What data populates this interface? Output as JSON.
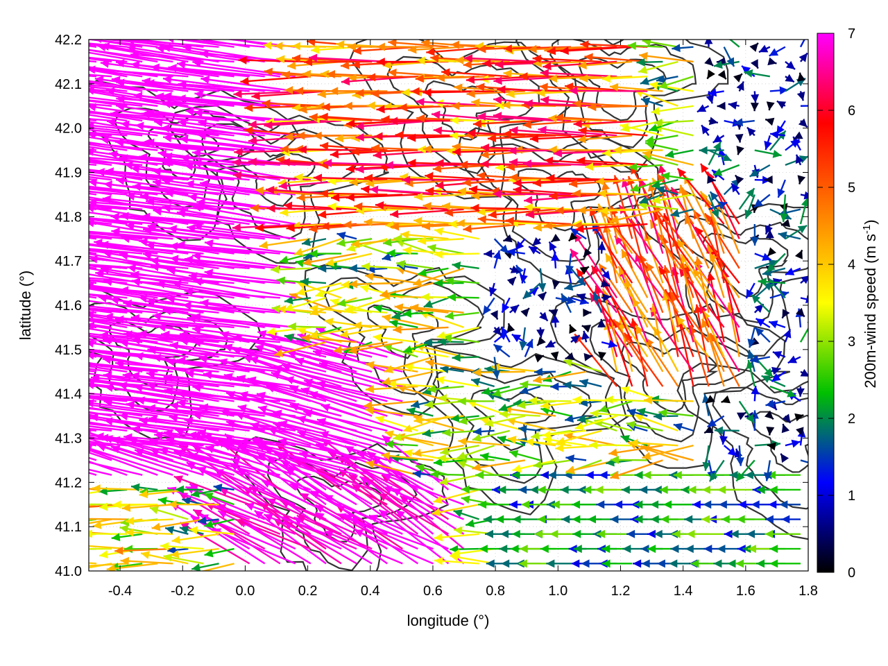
{
  "chart_data": {
    "type": "quiver",
    "xlabel": "longitude (°)",
    "ylabel": "latitude (°)",
    "colorbar_label": "200m-wind speed (m s⁻¹)",
    "colorbar_label_main": "200m-wind speed (m s",
    "colorbar_label_sup": "-1",
    "colorbar_label_end": ")",
    "xlim": [
      -0.5,
      1.8
    ],
    "ylim": [
      41.0,
      42.2
    ],
    "clim": [
      0,
      7
    ],
    "x_ticks": [
      "-0.4",
      "-0.2",
      "0.0",
      "0.2",
      "0.4",
      "0.6",
      "0.8",
      "1.0",
      "1.2",
      "1.4",
      "1.6",
      "1.8"
    ],
    "y_ticks": [
      "41.0",
      "41.1",
      "41.2",
      "41.3",
      "41.4",
      "41.5",
      "41.6",
      "41.7",
      "41.8",
      "41.9",
      "42.0",
      "42.1",
      "42.2"
    ],
    "colorbar_ticks": [
      "0",
      "1",
      "2",
      "3",
      "4",
      "5",
      "6",
      "7"
    ],
    "grid": true,
    "colormap": [
      "#000000",
      "#0000ff",
      "#00c000",
      "#ffff00",
      "#ff8000",
      "#ff0000",
      "#ff00ff"
    ],
    "contour_color": "#333333"
  }
}
